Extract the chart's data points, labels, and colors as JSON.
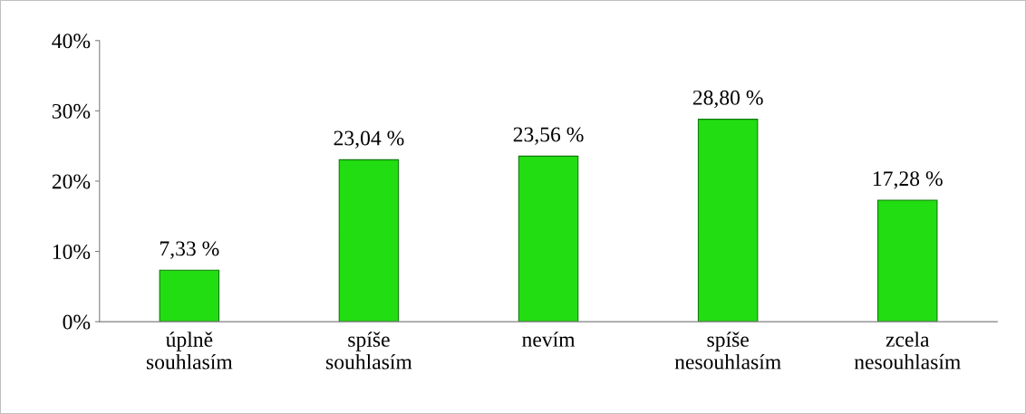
{
  "chart_data": {
    "type": "bar",
    "categories": [
      "úplně\nsouhlasím",
      "spíše\nsouhlasím",
      "nevím",
      "spíše\nnesouhlasím",
      "zcela\nnesouhlasím"
    ],
    "values": [
      7.33,
      23.04,
      23.56,
      28.8,
      17.28
    ],
    "value_labels": [
      "7,33 %",
      "23,04 %",
      "23,56 %",
      "28,80 %",
      "17,28 %"
    ],
    "color": "#22dd11",
    "ylim": [
      0,
      40
    ],
    "yticks": [
      {
        "value": 0,
        "label": "0%"
      },
      {
        "value": 10,
        "label": "10%"
      },
      {
        "value": 20,
        "label": "20%"
      },
      {
        "value": 30,
        "label": "30%"
      },
      {
        "value": 40,
        "label": "40%"
      }
    ],
    "grid": false
  }
}
